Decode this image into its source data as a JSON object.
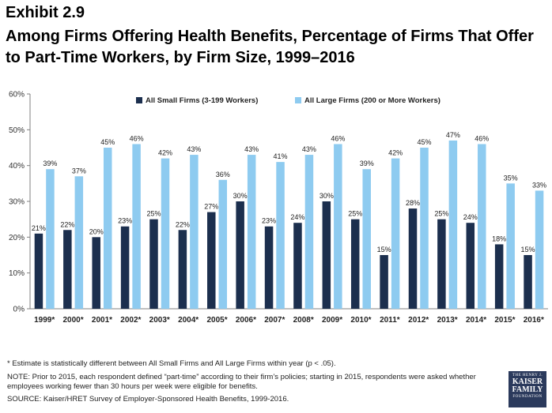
{
  "header": {
    "exhibit": "Exhibit 2.9",
    "title": "Among Firms Offering Health Benefits, Percentage of Firms That Offer to Part-Time Workers, by Firm Size, 1999–2016"
  },
  "colors": {
    "small": "#1c2f4e",
    "large": "#8ecbf0",
    "axis": "#808080",
    "grid": "#d9d9d9"
  },
  "chart_data": {
    "type": "bar",
    "categories": [
      "1999*",
      "2000*",
      "2001*",
      "2002*",
      "2003*",
      "2004*",
      "2005*",
      "2006*",
      "2007*",
      "2008*",
      "2009*",
      "2010*",
      "2011*",
      "2012*",
      "2013*",
      "2014*",
      "2015*",
      "2016*"
    ],
    "series": [
      {
        "name": "All Small Firms (3-199 Workers)",
        "values": [
          21,
          22,
          20,
          23,
          25,
          22,
          27,
          30,
          23,
          24,
          30,
          25,
          15,
          28,
          25,
          24,
          18,
          15
        ]
      },
      {
        "name": "All Large Firms (200 or More Workers)",
        "values": [
          39,
          37,
          45,
          46,
          42,
          43,
          36,
          43,
          41,
          43,
          46,
          39,
          42,
          45,
          47,
          46,
          35,
          33
        ]
      }
    ],
    "ylim": [
      0,
      60
    ],
    "yticks": [
      "0%",
      "10%",
      "20%",
      "30%",
      "40%",
      "50%",
      "60%"
    ],
    "value_suffix": "%",
    "xlabel": "",
    "ylabel": "",
    "grid": false,
    "legend": "top-center"
  },
  "footer": {
    "footnote": "* Estimate is statistically different between All Small Firms and All Large Firms within year (p < .05).",
    "note": "NOTE:  Prior to 2015, each respondent defined “part-time” according to their firm’s policies; starting in 2015, respondents were asked whether employees working fewer than 30 hours per week were eligible for benefits.",
    "source": "SOURCE:  Kaiser/HRET Survey of Employer-Sponsored Health Benefits, 1999-2016."
  },
  "logo": {
    "line1": "THE HENRY J.",
    "line2": "KAISER",
    "line3": "FAMILY",
    "line4": "FOUNDATION"
  }
}
